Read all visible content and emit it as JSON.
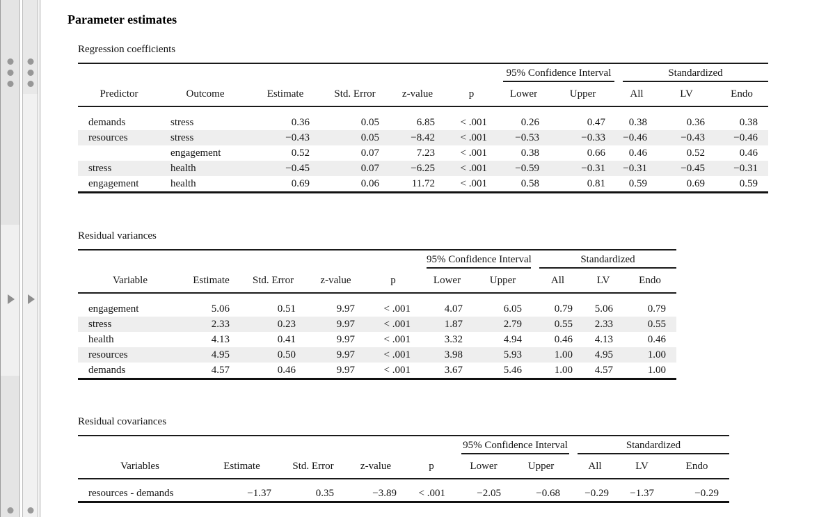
{
  "page": {
    "title": "Parameter estimates"
  },
  "colors": {
    "stripe": "#eeeeee",
    "rule": "#1a1a1a",
    "rail_gray": "#e4e4e4",
    "rail_light": "#f1f1f1"
  },
  "left_rail": {
    "bars": [
      {
        "grip_icon": "drag-dots-icon",
        "expand_icon": "triangle-right-icon",
        "bottom_icon": "dot-icon"
      },
      {
        "grip_icon": "drag-dots-icon",
        "expand_icon": "triangle-right-icon",
        "bottom_icon": "dot-icon"
      }
    ]
  },
  "tables": [
    {
      "caption": "Regression coefficients",
      "span_groups": [
        {
          "label": "95% Confidence Interval"
        },
        {
          "label": "Standardized"
        }
      ],
      "columns": [
        "Predictor",
        "Outcome",
        "Estimate",
        "Std. Error",
        "z-value",
        "p",
        "Lower",
        "Upper",
        "All",
        "LV",
        "Endo"
      ],
      "rows": [
        [
          "demands",
          "stress",
          "0.36",
          "0.05",
          "6.85",
          "< .001",
          "0.26",
          "0.47",
          "0.38",
          "0.36",
          "0.38"
        ],
        [
          "resources",
          "stress",
          "−0.43",
          "0.05",
          "−8.42",
          "< .001",
          "−0.53",
          "−0.33",
          "−0.46",
          "−0.43",
          "−0.46"
        ],
        [
          "",
          "engagement",
          "0.52",
          "0.07",
          "7.23",
          "< .001",
          "0.38",
          "0.66",
          "0.46",
          "0.52",
          "0.46"
        ],
        [
          "stress",
          "health",
          "−0.45",
          "0.07",
          "−6.25",
          "< .001",
          "−0.59",
          "−0.31",
          "−0.31",
          "−0.45",
          "−0.31"
        ],
        [
          "engagement",
          "health",
          "0.69",
          "0.06",
          "11.72",
          "< .001",
          "0.58",
          "0.81",
          "0.59",
          "0.69",
          "0.59"
        ]
      ]
    },
    {
      "caption": "Residual variances",
      "span_groups": [
        {
          "label": "95% Confidence Interval"
        },
        {
          "label": "Standardized"
        }
      ],
      "columns": [
        "Variable",
        "Estimate",
        "Std. Error",
        "z-value",
        "p",
        "Lower",
        "Upper",
        "All",
        "LV",
        "Endo"
      ],
      "rows": [
        [
          "engagement",
          "5.06",
          "0.51",
          "9.97",
          "< .001",
          "4.07",
          "6.05",
          "0.79",
          "5.06",
          "0.79"
        ],
        [
          "stress",
          "2.33",
          "0.23",
          "9.97",
          "< .001",
          "1.87",
          "2.79",
          "0.55",
          "2.33",
          "0.55"
        ],
        [
          "health",
          "4.13",
          "0.41",
          "9.97",
          "< .001",
          "3.32",
          "4.94",
          "0.46",
          "4.13",
          "0.46"
        ],
        [
          "resources",
          "4.95",
          "0.50",
          "9.97",
          "< .001",
          "3.98",
          "5.93",
          "1.00",
          "4.95",
          "1.00"
        ],
        [
          "demands",
          "4.57",
          "0.46",
          "9.97",
          "< .001",
          "3.67",
          "5.46",
          "1.00",
          "4.57",
          "1.00"
        ]
      ]
    },
    {
      "caption": "Residual covariances",
      "span_groups": [
        {
          "label": "95% Confidence Interval"
        },
        {
          "label": "Standardized"
        }
      ],
      "columns": [
        "Variables",
        "Estimate",
        "Std. Error",
        "z-value",
        "p",
        "Lower",
        "Upper",
        "All",
        "LV",
        "Endo"
      ],
      "rows": [
        [
          "resources - demands",
          "−1.37",
          "0.35",
          "−3.89",
          "< .001",
          "−2.05",
          "−0.68",
          "−0.29",
          "−1.37",
          "−0.29"
        ]
      ]
    }
  ]
}
